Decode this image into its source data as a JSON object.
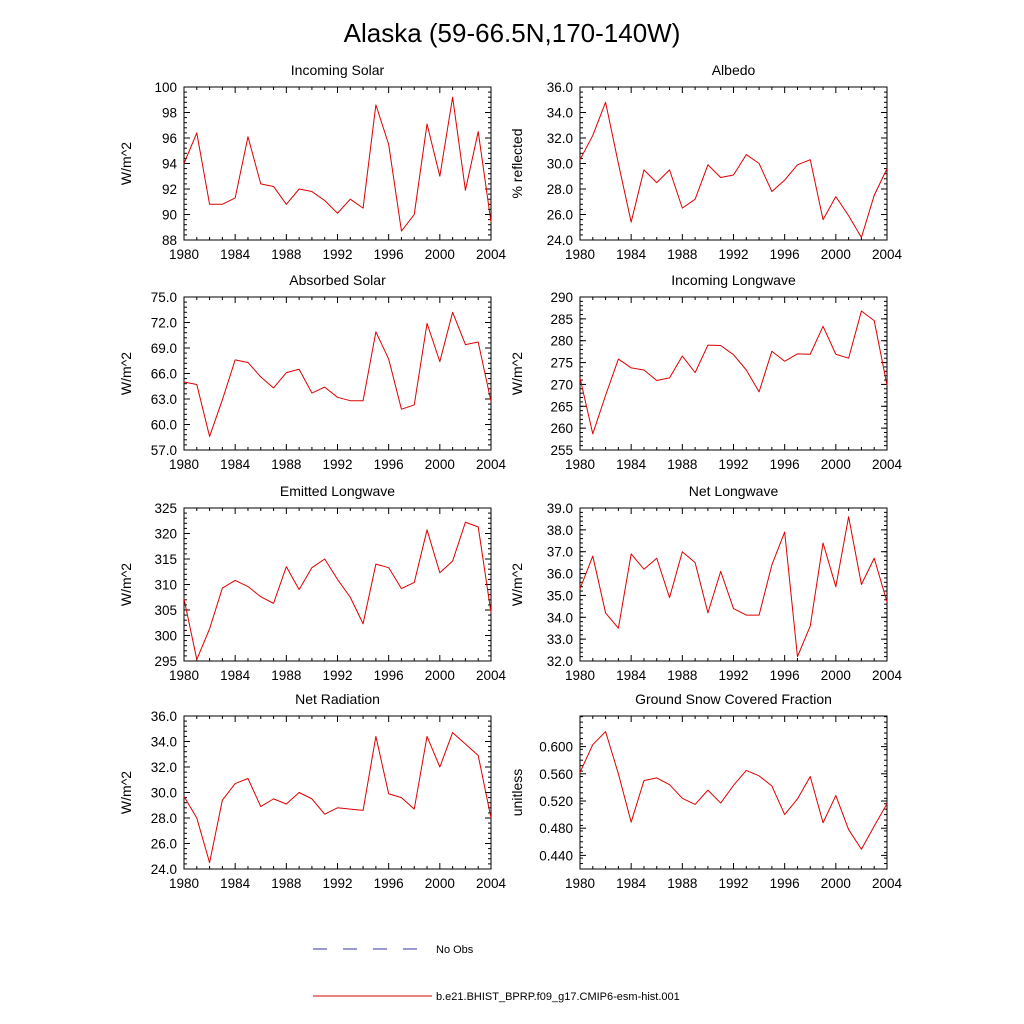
{
  "title": "Alaska (59-66.5N,170-140W)",
  "legend": [
    {
      "label": "No Obs",
      "color": "#3333aa",
      "dash": true
    },
    {
      "label": "b.e21.BHIST_BPRP.f09_g17.CMIP6-esm-hist.001",
      "color": "#dd0000",
      "dash": false
    }
  ],
  "chart_data": [
    {
      "type": "line",
      "title": "Incoming Solar",
      "ylabel": "W/m^2",
      "xlim": [
        1980,
        2004
      ],
      "ylim": [
        88,
        100
      ],
      "yticks": [
        88,
        90,
        92,
        94,
        96,
        98,
        100
      ],
      "ytick_labels": [
        "88",
        "90",
        "92",
        "94",
        "96",
        "98",
        "100"
      ],
      "xticks": [
        1980,
        1984,
        1988,
        1992,
        1996,
        2000,
        2004
      ],
      "series": [
        {
          "color": "#dd0000",
          "x": [
            1980,
            1981,
            1982,
            1983,
            1984,
            1985,
            1986,
            1987,
            1988,
            1989,
            1990,
            1991,
            1992,
            1993,
            1994,
            1995,
            1996,
            1997,
            1998,
            1999,
            2000,
            2001,
            2002,
            2003,
            2004
          ],
          "values": [
            94.0,
            96.4,
            90.8,
            90.8,
            91.3,
            96.1,
            92.4,
            92.2,
            90.8,
            92.0,
            91.8,
            91.1,
            90.1,
            91.2,
            90.5,
            98.6,
            95.5,
            88.7,
            90.0,
            97.1,
            93.0,
            99.2,
            91.9,
            96.5,
            89.4
          ]
        }
      ]
    },
    {
      "type": "line",
      "title": "Albedo",
      "ylabel": "% reflected",
      "xlim": [
        1980,
        2004
      ],
      "ylim": [
        24,
        36
      ],
      "yticks": [
        24,
        26,
        28,
        30,
        32,
        34,
        36
      ],
      "ytick_labels": [
        "24.0",
        "26.0",
        "28.0",
        "30.0",
        "32.0",
        "34.0",
        "36.0"
      ],
      "xticks": [
        1980,
        1984,
        1988,
        1992,
        1996,
        2000,
        2004
      ],
      "series": [
        {
          "color": "#dd0000",
          "x": [
            1980,
            1981,
            1982,
            1983,
            1984,
            1985,
            1986,
            1987,
            1988,
            1989,
            1990,
            1991,
            1992,
            1993,
            1994,
            1995,
            1996,
            1997,
            1998,
            1999,
            2000,
            2001,
            2002,
            2003,
            2004
          ],
          "values": [
            30.3,
            32.2,
            34.8,
            30.0,
            25.4,
            29.5,
            28.5,
            29.5,
            26.5,
            27.2,
            29.9,
            28.9,
            29.1,
            30.7,
            30.0,
            27.8,
            28.7,
            29.9,
            30.3,
            25.6,
            27.4,
            25.9,
            24.2,
            27.5,
            29.6
          ]
        }
      ]
    },
    {
      "type": "line",
      "title": "Absorbed Solar",
      "ylabel": "W/m^2",
      "xlim": [
        1980,
        2004
      ],
      "ylim": [
        57,
        75
      ],
      "yticks": [
        57,
        60,
        63,
        66,
        69,
        72,
        75
      ],
      "ytick_labels": [
        "57.0",
        "60.0",
        "63.0",
        "66.0",
        "69.0",
        "72.0",
        "75.0"
      ],
      "xticks": [
        1980,
        1984,
        1988,
        1992,
        1996,
        2000,
        2004
      ],
      "series": [
        {
          "color": "#dd0000",
          "x": [
            1980,
            1981,
            1982,
            1983,
            1984,
            1985,
            1986,
            1987,
            1988,
            1989,
            1990,
            1991,
            1992,
            1993,
            1994,
            1995,
            1996,
            1997,
            1998,
            1999,
            2000,
            2001,
            2002,
            2003,
            2004
          ],
          "values": [
            65.0,
            64.7,
            58.6,
            62.9,
            67.6,
            67.3,
            65.6,
            64.3,
            66.1,
            66.5,
            63.7,
            64.4,
            63.2,
            62.8,
            62.8,
            70.9,
            67.7,
            61.8,
            62.3,
            71.9,
            67.4,
            73.2,
            69.4,
            69.7,
            62.7
          ]
        }
      ]
    },
    {
      "type": "line",
      "title": "Incoming Longwave",
      "ylabel": "W/m^2",
      "xlim": [
        1980,
        2004
      ],
      "ylim": [
        255,
        290
      ],
      "yticks": [
        255,
        260,
        265,
        270,
        275,
        280,
        285,
        290
      ],
      "ytick_labels": [
        "255",
        "260",
        "265",
        "270",
        "275",
        "280",
        "285",
        "290"
      ],
      "xticks": [
        1980,
        1984,
        1988,
        1992,
        1996,
        2000,
        2004
      ],
      "series": [
        {
          "color": "#dd0000",
          "x": [
            1980,
            1981,
            1982,
            1983,
            1984,
            1985,
            1986,
            1987,
            1988,
            1989,
            1990,
            1991,
            1992,
            1993,
            1994,
            1995,
            1996,
            1997,
            1998,
            1999,
            2000,
            2001,
            2002,
            2003,
            2004
          ],
          "values": [
            271.5,
            258.7,
            267.5,
            275.8,
            273.8,
            273.3,
            270.9,
            271.5,
            276.5,
            272.7,
            279.0,
            278.9,
            276.8,
            273.3,
            268.3,
            277.6,
            275.3,
            277.0,
            276.9,
            283.3,
            276.9,
            276.0,
            286.8,
            284.6,
            269.8
          ]
        }
      ]
    },
    {
      "type": "line",
      "title": "Emitted Longwave",
      "ylabel": "W/m^2",
      "xlim": [
        1980,
        2004
      ],
      "ylim": [
        295,
        325
      ],
      "yticks": [
        295,
        300,
        305,
        310,
        315,
        320,
        325
      ],
      "ytick_labels": [
        "295",
        "300",
        "305",
        "310",
        "315",
        "320",
        "325"
      ],
      "xticks": [
        1980,
        1984,
        1988,
        1992,
        1996,
        2000,
        2004
      ],
      "series": [
        {
          "color": "#dd0000",
          "x": [
            1980,
            1981,
            1982,
            1983,
            1984,
            1985,
            1986,
            1987,
            1988,
            1989,
            1990,
            1991,
            1992,
            1993,
            1994,
            1995,
            1996,
            1997,
            1998,
            1999,
            2000,
            2001,
            2002,
            2003,
            2004
          ],
          "values": [
            307.2,
            295.3,
            301.3,
            309.3,
            310.8,
            309.6,
            307.6,
            306.3,
            313.5,
            309.0,
            313.3,
            315.0,
            311.0,
            307.5,
            302.3,
            314.0,
            313.3,
            309.2,
            310.4,
            320.7,
            312.3,
            314.6,
            322.2,
            321.3,
            304.5
          ]
        }
      ]
    },
    {
      "type": "line",
      "title": "Net Longwave",
      "ylabel": "W/m^2",
      "xlim": [
        1980,
        2004
      ],
      "ylim": [
        32,
        39
      ],
      "yticks": [
        32,
        33,
        34,
        35,
        36,
        37,
        38,
        39
      ],
      "ytick_labels": [
        "32.0",
        "33.0",
        "34.0",
        "35.0",
        "36.0",
        "37.0",
        "38.0",
        "39.0"
      ],
      "xticks": [
        1980,
        1984,
        1988,
        1992,
        1996,
        2000,
        2004
      ],
      "series": [
        {
          "color": "#dd0000",
          "x": [
            1980,
            1981,
            1982,
            1983,
            1984,
            1985,
            1986,
            1987,
            1988,
            1989,
            1990,
            1991,
            1992,
            1993,
            1994,
            1995,
            1996,
            1997,
            1998,
            1999,
            2000,
            2001,
            2002,
            2003,
            2004
          ],
          "values": [
            35.3,
            36.8,
            34.2,
            33.5,
            36.9,
            36.2,
            36.7,
            34.9,
            37.0,
            36.5,
            34.2,
            36.1,
            34.4,
            34.1,
            34.1,
            36.4,
            37.9,
            32.2,
            33.6,
            37.4,
            35.4,
            38.6,
            35.5,
            36.7,
            34.7
          ]
        }
      ]
    },
    {
      "type": "line",
      "title": "Net Radiation",
      "ylabel": "W/m^2",
      "xlim": [
        1980,
        2004
      ],
      "ylim": [
        24,
        36
      ],
      "yticks": [
        24,
        26,
        28,
        30,
        32,
        34,
        36
      ],
      "ytick_labels": [
        "24.0",
        "26.0",
        "28.0",
        "30.0",
        "32.0",
        "34.0",
        "36.0"
      ],
      "xticks": [
        1980,
        1984,
        1988,
        1992,
        1996,
        2000,
        2004
      ],
      "series": [
        {
          "color": "#dd0000",
          "x": [
            1980,
            1981,
            1982,
            1983,
            1984,
            1985,
            1986,
            1987,
            1988,
            1989,
            1990,
            1991,
            1992,
            1993,
            1994,
            1995,
            1996,
            1997,
            1998,
            1999,
            2000,
            2001,
            2002,
            2003,
            2004
          ],
          "values": [
            29.7,
            28.0,
            24.5,
            29.4,
            30.7,
            31.1,
            28.9,
            29.5,
            29.1,
            30.0,
            29.5,
            28.3,
            28.8,
            28.7,
            28.6,
            34.4,
            29.9,
            29.6,
            28.7,
            34.4,
            32.0,
            34.7,
            33.8,
            32.9,
            28.0
          ]
        }
      ]
    },
    {
      "type": "line",
      "title": "Ground Snow Covered Fraction",
      "ylabel": "unitless",
      "xlim": [
        1980,
        2004
      ],
      "ylim": [
        0.42,
        0.645
      ],
      "yticks": [
        0.44,
        0.48,
        0.52,
        0.56,
        0.6
      ],
      "ytick_labels": [
        "0.440",
        "0.480",
        "0.520",
        "0.560",
        "0.600"
      ],
      "xticks": [
        1980,
        1984,
        1988,
        1992,
        1996,
        2000,
        2004
      ],
      "series": [
        {
          "color": "#dd0000",
          "x": [
            1980,
            1981,
            1982,
            1983,
            1984,
            1985,
            1986,
            1987,
            1988,
            1989,
            1990,
            1991,
            1992,
            1993,
            1994,
            1995,
            1996,
            1997,
            1998,
            1999,
            2000,
            2001,
            2002,
            2003,
            2004
          ],
          "values": [
            0.562,
            0.603,
            0.622,
            0.56,
            0.489,
            0.55,
            0.554,
            0.544,
            0.524,
            0.515,
            0.536,
            0.517,
            0.543,
            0.565,
            0.557,
            0.542,
            0.5,
            0.523,
            0.556,
            0.488,
            0.528,
            0.478,
            0.449,
            0.483,
            0.516
          ]
        }
      ]
    }
  ]
}
